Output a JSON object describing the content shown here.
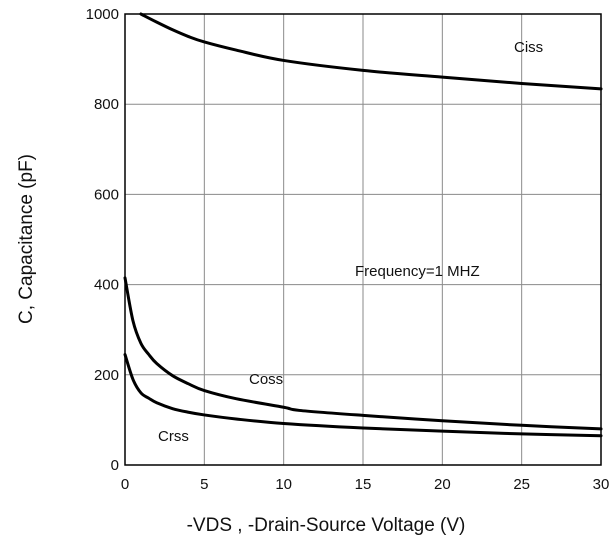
{
  "chart_data": {
    "type": "line",
    "title": "",
    "xlabel": "-VDS , -Drain-Source Voltage (V)",
    "ylabel": "C, Capacitance (pF)",
    "xlim": [
      0,
      30
    ],
    "ylim": [
      0,
      1000
    ],
    "xticks": [
      0,
      5,
      10,
      15,
      20,
      25,
      30
    ],
    "yticks": [
      0,
      200,
      400,
      600,
      800,
      1000
    ],
    "grid": true,
    "legend": "none",
    "annotations": [
      {
        "id": "frequency",
        "text": "Frequency=1 MHZ"
      }
    ],
    "series": [
      {
        "name": "Ciss",
        "color": "#000000",
        "x": [
          1.0,
          2.0,
          3.0,
          4.0,
          5.0,
          7.0,
          10.0,
          15.0,
          20.0,
          25.0,
          30.0
        ],
        "y": [
          1000,
          982,
          965,
          950,
          938,
          920,
          897,
          875,
          860,
          846,
          834
        ]
      },
      {
        "name": "Coss",
        "color": "#000000",
        "x": [
          0,
          0.5,
          1.0,
          1.5,
          2.0,
          3.0,
          4.0,
          5.0,
          7.0,
          10.0,
          11.0,
          15.0,
          20.0,
          25.0,
          30.0
        ],
        "y": [
          415,
          320,
          270,
          245,
          225,
          198,
          180,
          165,
          147,
          128,
          121,
          110,
          98,
          88,
          80
        ]
      },
      {
        "name": "Crss",
        "color": "#000000",
        "x": [
          0,
          0.5,
          1.0,
          1.5,
          2.0,
          3.0,
          4.0,
          5.0,
          7.0,
          10.0,
          15.0,
          20.0,
          25.0,
          30.0
        ],
        "y": [
          245,
          190,
          160,
          148,
          138,
          125,
          117,
          111,
          102,
          92,
          82,
          75,
          69,
          65
        ]
      }
    ]
  }
}
